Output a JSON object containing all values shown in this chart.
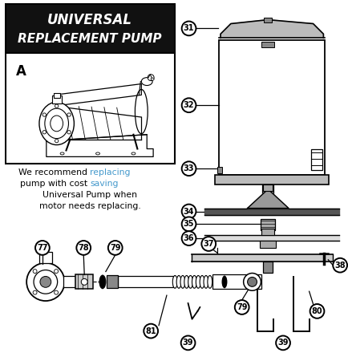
{
  "bg_color": "#ffffff",
  "title_line1": "UNIVERSAL",
  "title_line2": "REPLACEMENT PUMP",
  "title_bg": "#111111",
  "title_color": "#ffffff",
  "text_color": "#111111",
  "blue_color": "#4499cc",
  "gray_dark": "#444444",
  "gray_mid": "#888888",
  "gray_light": "#cccccc",
  "panel_border": "#111111",
  "recommend_text_1_plain": "We recommend ",
  "recommend_text_1_blue": "replacing",
  "recommend_text_2_plain": "pump with cost ",
  "recommend_text_2_blue": "saving",
  "recommend_text_3": "Universal Pump when",
  "recommend_text_4": "motor needs replacing.",
  "label_A": "A",
  "parts_right": [
    31,
    32,
    33,
    34,
    35,
    36
  ],
  "parts_bottom": [
    77,
    78,
    79,
    37,
    38,
    79,
    80,
    39,
    81,
    39
  ]
}
